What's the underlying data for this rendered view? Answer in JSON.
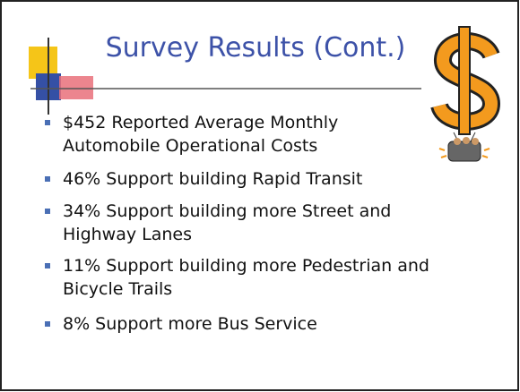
{
  "title": "Survey Results (Cont.)",
  "bullets": [
    [
      "$452 Reported Average Monthly",
      "Automobile Operational Costs"
    ],
    [
      "46% Support building Rapid Transit"
    ],
    [
      "34% Support building more Street and",
      "Highway Lanes"
    ],
    [
      "11% Support building more Pedestrian and",
      "Bicycle Trails"
    ],
    [
      "8% Support more Bus Service"
    ]
  ]
}
